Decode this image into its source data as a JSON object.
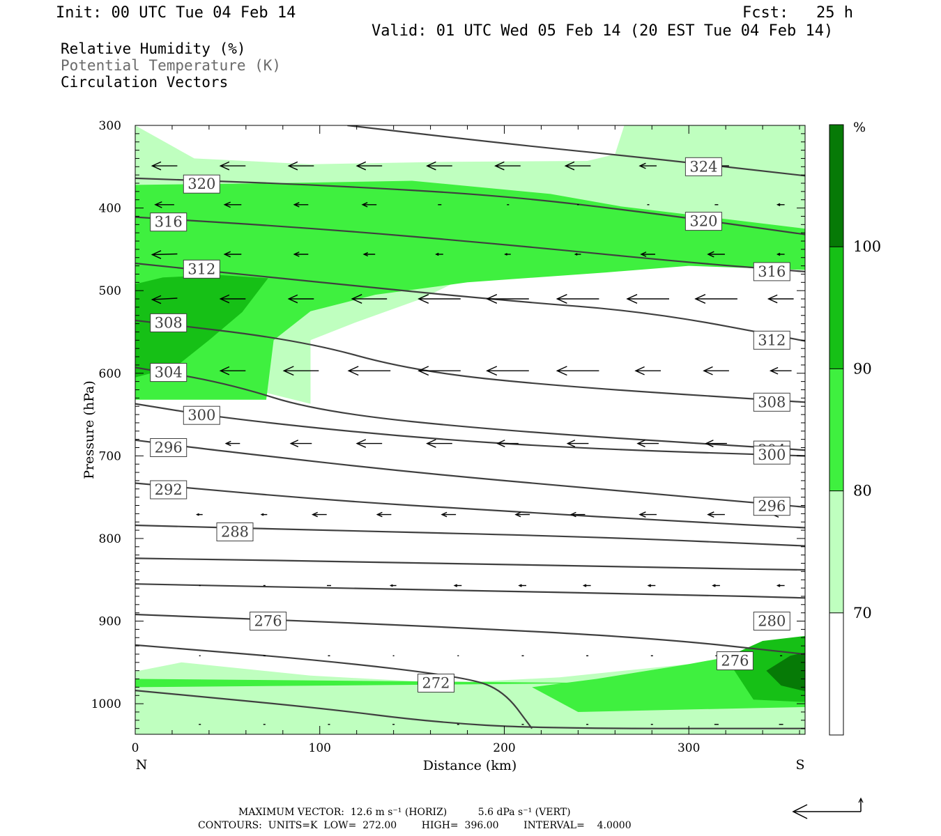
{
  "header": {
    "init": "Init: 00 UTC Tue 04 Feb 14",
    "fcst": "Fcst:   25 h",
    "valid": "Valid: 01 UTC Wed 05 Feb 14 (20 EST Tue 04 Feb 14)"
  },
  "legend": {
    "line1": "Relative Humidity (%)",
    "line2": "Potential Temperature (K)",
    "line3": "Circulation Vectors"
  },
  "colors": {
    "rh_70": "#bfffbf",
    "rh_80": "#3ff03f",
    "rh_90": "#16c016",
    "rh_100": "#067a06",
    "theta_line": "#3f3f3f",
    "legend_gray": "#6a6a6a"
  },
  "chart_data": {
    "type": "cross-section",
    "xlabel": "Distance (km)",
    "ylabel": "Pressure (hPa)",
    "xlim": [
      0,
      363
    ],
    "ylim": [
      1037,
      300
    ],
    "x_ticks": [
      "0",
      "100",
      "200",
      "300"
    ],
    "y_ticks": [
      "300",
      "400",
      "500",
      "600",
      "700",
      "800",
      "900",
      "1000"
    ],
    "left_end_label": "N",
    "right_end_label": "S",
    "colorbar": {
      "unit": "%",
      "levels": [
        "70",
        "80",
        "90",
        "100"
      ],
      "colors": [
        "#ffffff",
        "#bfffbf",
        "#3ff03f",
        "#16c016",
        "#067a06"
      ]
    },
    "rh_regions": [
      {
        "level": 70,
        "points": [
          [
            0,
            300
          ],
          [
            32,
            340
          ],
          [
            95,
            347
          ],
          [
            170,
            344
          ],
          [
            245,
            343
          ],
          [
            260,
            335
          ],
          [
            265,
            300
          ],
          [
            363,
            300
          ],
          [
            363,
            455
          ],
          [
            320,
            450
          ],
          [
            280,
            450
          ],
          [
            190,
            472
          ],
          [
            155,
            510
          ],
          [
            120,
            538
          ],
          [
            95,
            560
          ],
          [
            95,
            637
          ],
          [
            68,
            622
          ],
          [
            0,
            623
          ]
        ]
      },
      {
        "level": 70,
        "points": [
          [
            0,
            961
          ],
          [
            25,
            950
          ],
          [
            95,
            966
          ],
          [
            170,
            975
          ],
          [
            230,
            968
          ],
          [
            300,
            952
          ],
          [
            363,
            944
          ],
          [
            363,
            1037
          ],
          [
            0,
            1037
          ]
        ]
      },
      {
        "level": 80,
        "points": [
          [
            0,
            372
          ],
          [
            75,
            370
          ],
          [
            150,
            367
          ],
          [
            225,
            383
          ],
          [
            263,
            398
          ],
          [
            363,
            425
          ],
          [
            363,
            475
          ],
          [
            300,
            470
          ],
          [
            255,
            478
          ],
          [
            180,
            490
          ],
          [
            130,
            505
          ],
          [
            95,
            525
          ],
          [
            75,
            560
          ],
          [
            71,
            632
          ],
          [
            0,
            632
          ]
        ]
      },
      {
        "level": 80,
        "points": [
          [
            0,
            980
          ],
          [
            260,
            975
          ],
          [
            0,
            970
          ]
        ]
      },
      {
        "level": 80,
        "points": [
          [
            215,
            980
          ],
          [
            250,
            970
          ],
          [
            300,
            952
          ],
          [
            340,
            936
          ],
          [
            363,
            930
          ],
          [
            363,
            1004
          ],
          [
            300,
            1007
          ],
          [
            240,
            1010
          ]
        ]
      },
      {
        "level": 90,
        "points": [
          [
            0,
            492
          ],
          [
            15,
            484
          ],
          [
            45,
            481
          ],
          [
            72,
            485
          ],
          [
            58,
            526
          ],
          [
            40,
            560
          ],
          [
            22,
            592
          ],
          [
            0,
            605
          ]
        ]
      },
      {
        "level": 90,
        "points": [
          [
            320,
            944
          ],
          [
            340,
            924
          ],
          [
            363,
            918
          ],
          [
            363,
            998
          ],
          [
            335,
            995
          ]
        ]
      },
      {
        "level": 100,
        "points": [
          [
            342,
            960
          ],
          [
            355,
            942
          ],
          [
            363,
            938
          ],
          [
            363,
            985
          ],
          [
            350,
            978
          ]
        ]
      }
    ],
    "theta_contours": [
      {
        "level": 324,
        "points": [
          [
            115,
            300
          ],
          [
            200,
            322
          ],
          [
            280,
            340
          ],
          [
            363,
            361
          ]
        ],
        "label": {
          "text": "324",
          "x": 308,
          "p": 350
        }
      },
      {
        "level": 320,
        "points": [
          [
            0,
            364
          ],
          [
            100,
            372
          ],
          [
            200,
            385
          ],
          [
            280,
            406
          ],
          [
            363,
            432
          ]
        ],
        "label": {
          "text": "320",
          "x": 36,
          "p": 371
        },
        "label2": {
          "text": "320",
          "x": 308,
          "p": 416
        }
      },
      {
        "level": 316,
        "points": [
          [
            0,
            411
          ],
          [
            100,
            425
          ],
          [
            200,
            444
          ],
          [
            300,
            466
          ],
          [
            363,
            477
          ]
        ],
        "label": {
          "text": "316",
          "x": 18,
          "p": 417
        },
        "label2": {
          "text": "316",
          "x": 345,
          "p": 477
        }
      },
      {
        "level": 312,
        "points": [
          [
            0,
            467
          ],
          [
            100,
            490
          ],
          [
            200,
            512
          ],
          [
            280,
            526
          ],
          [
            363,
            561
          ]
        ],
        "label": {
          "text": "312",
          "x": 36,
          "p": 474
        },
        "label2": {
          "text": "312",
          "x": 345,
          "p": 560
        }
      },
      {
        "level": 308,
        "points": [
          [
            0,
            536
          ],
          [
            90,
            560
          ],
          [
            150,
            597
          ],
          [
            230,
            616
          ],
          [
            363,
            635
          ]
        ],
        "label": {
          "text": "308",
          "x": 18,
          "p": 539
        },
        "label2": {
          "text": "308",
          "x": 345,
          "p": 635
        }
      },
      {
        "level": 304,
        "points": [
          [
            0,
            593
          ],
          [
            50,
            612
          ],
          [
            100,
            647
          ],
          [
            200,
            670
          ],
          [
            363,
            693
          ]
        ],
        "label": {
          "text": "304",
          "x": 18,
          "p": 599
        },
        "label2": {
          "text": "304",
          "x": 345,
          "p": 693
        }
      },
      {
        "level": 300,
        "points": [
          [
            0,
            637
          ],
          [
            50,
            655
          ],
          [
            150,
            678
          ],
          [
            250,
            692
          ],
          [
            363,
            700
          ]
        ],
        "label": {
          "text": "300",
          "x": 36,
          "p": 651
        },
        "label2": {
          "text": "300",
          "x": 345,
          "p": 699
        }
      },
      {
        "level": 296,
        "points": [
          [
            0,
            681
          ],
          [
            50,
            695
          ],
          [
            150,
            720
          ],
          [
            250,
            740
          ],
          [
            363,
            762
          ]
        ],
        "label": {
          "text": "296",
          "x": 18,
          "p": 690
        },
        "label2": {
          "text": "296",
          "x": 345,
          "p": 761
        }
      },
      {
        "level": 292,
        "points": [
          [
            0,
            733
          ],
          [
            100,
            753
          ],
          [
            200,
            767
          ],
          [
            300,
            780
          ],
          [
            363,
            787
          ]
        ],
        "label": {
          "text": "292",
          "x": 18,
          "p": 741
        }
      },
      {
        "level": 288,
        "points": [
          [
            0,
            784
          ],
          [
            100,
            790
          ],
          [
            250,
            798
          ],
          [
            363,
            809
          ]
        ],
        "label": {
          "text": "288",
          "x": 54,
          "p": 792
        }
      },
      {
        "level": 284,
        "points": [
          [
            0,
            824
          ],
          [
            150,
            829
          ],
          [
            300,
            836
          ],
          [
            363,
            838
          ]
        ]
      },
      {
        "level": 280,
        "points": [
          [
            0,
            855
          ],
          [
            150,
            862
          ],
          [
            300,
            868
          ],
          [
            363,
            872
          ]
        ],
        "label": {
          "text": "280",
          "x": 345,
          "p": 900
        }
      },
      {
        "level": 276,
        "points": [
          [
            0,
            892
          ],
          [
            150,
            905
          ],
          [
            280,
            920
          ],
          [
            363,
            940
          ]
        ],
        "label": {
          "text": "276",
          "x": 72,
          "p": 900
        },
        "label2": {
          "text": "276",
          "x": 325,
          "p": 948
        }
      },
      {
        "level": 272,
        "points": [
          [
            0,
            929
          ],
          [
            100,
            947
          ],
          [
            180,
            968
          ],
          [
            200,
            985
          ],
          [
            215,
            1030
          ]
        ],
        "label": {
          "text": "272",
          "x": 163,
          "p": 975
        }
      },
      {
        "level": 268,
        "points": [
          [
            0,
            984
          ],
          [
            100,
            1005
          ],
          [
            160,
            1022
          ],
          [
            220,
            1030
          ],
          [
            363,
            1030
          ]
        ]
      }
    ],
    "vectors": [
      [
        16,
        349,
        36,
        0
      ],
      [
        53,
        349,
        36,
        0
      ],
      [
        90,
        349,
        36,
        0
      ],
      [
        127,
        349,
        36,
        0
      ],
      [
        165,
        349,
        36,
        0
      ],
      [
        202,
        349,
        36,
        0
      ],
      [
        240,
        349,
        36,
        0
      ],
      [
        278,
        349,
        24,
        0
      ],
      [
        315,
        349,
        36,
        0
      ],
      [
        16,
        396,
        27,
        0
      ],
      [
        53,
        396,
        24,
        0
      ],
      [
        90,
        396,
        20,
        0
      ],
      [
        127,
        396,
        20,
        0
      ],
      [
        165,
        396,
        5,
        0
      ],
      [
        202,
        396,
        3,
        0
      ],
      [
        240,
        396,
        3,
        0
      ],
      [
        278,
        396,
        3,
        0
      ],
      [
        315,
        396,
        5,
        0
      ],
      [
        350,
        396,
        10,
        0
      ],
      [
        16,
        456,
        36,
        1
      ],
      [
        53,
        456,
        24,
        0
      ],
      [
        90,
        456,
        20,
        0
      ],
      [
        127,
        456,
        16,
        0
      ],
      [
        165,
        456,
        10,
        0
      ],
      [
        202,
        456,
        8,
        0
      ],
      [
        240,
        456,
        8,
        0
      ],
      [
        278,
        456,
        20,
        0
      ],
      [
        315,
        456,
        24,
        0
      ],
      [
        350,
        456,
        10,
        0
      ],
      [
        16,
        510,
        36,
        2
      ],
      [
        53,
        510,
        36,
        0
      ],
      [
        90,
        510,
        36,
        0
      ],
      [
        127,
        510,
        50,
        0
      ],
      [
        165,
        510,
        60,
        0
      ],
      [
        202,
        510,
        60,
        0
      ],
      [
        240,
        510,
        60,
        0
      ],
      [
        278,
        510,
        60,
        0
      ],
      [
        315,
        510,
        60,
        0
      ],
      [
        350,
        510,
        36,
        0
      ],
      [
        16,
        597,
        30,
        0
      ],
      [
        53,
        597,
        36,
        0
      ],
      [
        90,
        597,
        50,
        0
      ],
      [
        127,
        597,
        60,
        0
      ],
      [
        165,
        597,
        60,
        0
      ],
      [
        202,
        597,
        60,
        0
      ],
      [
        240,
        597,
        60,
        0
      ],
      [
        278,
        597,
        36,
        0
      ],
      [
        315,
        597,
        36,
        0
      ],
      [
        350,
        597,
        30,
        0
      ],
      [
        53,
        685,
        20,
        0
      ],
      [
        90,
        685,
        30,
        0
      ],
      [
        127,
        685,
        36,
        0
      ],
      [
        165,
        685,
        36,
        0
      ],
      [
        202,
        685,
        30,
        0
      ],
      [
        240,
        685,
        30,
        0
      ],
      [
        278,
        685,
        30,
        0
      ],
      [
        315,
        685,
        30,
        0
      ],
      [
        350,
        685,
        20,
        0
      ],
      [
        35,
        771,
        8,
        0
      ],
      [
        70,
        771,
        8,
        0
      ],
      [
        100,
        771,
        20,
        0
      ],
      [
        135,
        771,
        20,
        0
      ],
      [
        170,
        771,
        20,
        0
      ],
      [
        210,
        771,
        20,
        0
      ],
      [
        240,
        771,
        20,
        0
      ],
      [
        278,
        771,
        24,
        0
      ],
      [
        315,
        771,
        24,
        0
      ],
      [
        350,
        771,
        24,
        0
      ],
      [
        35,
        857,
        2,
        0
      ],
      [
        70,
        857,
        3,
        0
      ],
      [
        105,
        857,
        6,
        0
      ],
      [
        140,
        857,
        8,
        0
      ],
      [
        175,
        857,
        10,
        0
      ],
      [
        210,
        857,
        10,
        0
      ],
      [
        245,
        857,
        10,
        0
      ],
      [
        280,
        857,
        10,
        0
      ],
      [
        315,
        857,
        10,
        0
      ],
      [
        350,
        857,
        10,
        0
      ],
      [
        35,
        942,
        2,
        0
      ],
      [
        70,
        942,
        3,
        0
      ],
      [
        105,
        942,
        3,
        0
      ],
      [
        140,
        942,
        2,
        0
      ],
      [
        175,
        942,
        2,
        0
      ],
      [
        210,
        942,
        3,
        0
      ],
      [
        245,
        942,
        3,
        0
      ],
      [
        280,
        942,
        3,
        0
      ],
      [
        315,
        942,
        3,
        0
      ],
      [
        350,
        942,
        3,
        0
      ],
      [
        35,
        1025,
        3,
        0
      ],
      [
        70,
        1025,
        3,
        0
      ],
      [
        105,
        1025,
        3,
        0
      ],
      [
        140,
        1025,
        3,
        0
      ],
      [
        175,
        1025,
        3,
        0
      ],
      [
        210,
        1025,
        3,
        0
      ],
      [
        245,
        1025,
        3,
        0
      ],
      [
        280,
        1025,
        3,
        0
      ],
      [
        315,
        1025,
        6,
        0
      ],
      [
        350,
        1025,
        6,
        0
      ]
    ]
  },
  "footer": {
    "max_vector": "MAXIMUM VECTOR:  12.6 m s⁻¹ (HORIZ)          5.6 dPa s⁻¹ (VERT)",
    "contours": "CONTOURS:  UNITS=K  LOW=  272.00        HIGH=  396.00        INTERVAL=    4.0000"
  }
}
